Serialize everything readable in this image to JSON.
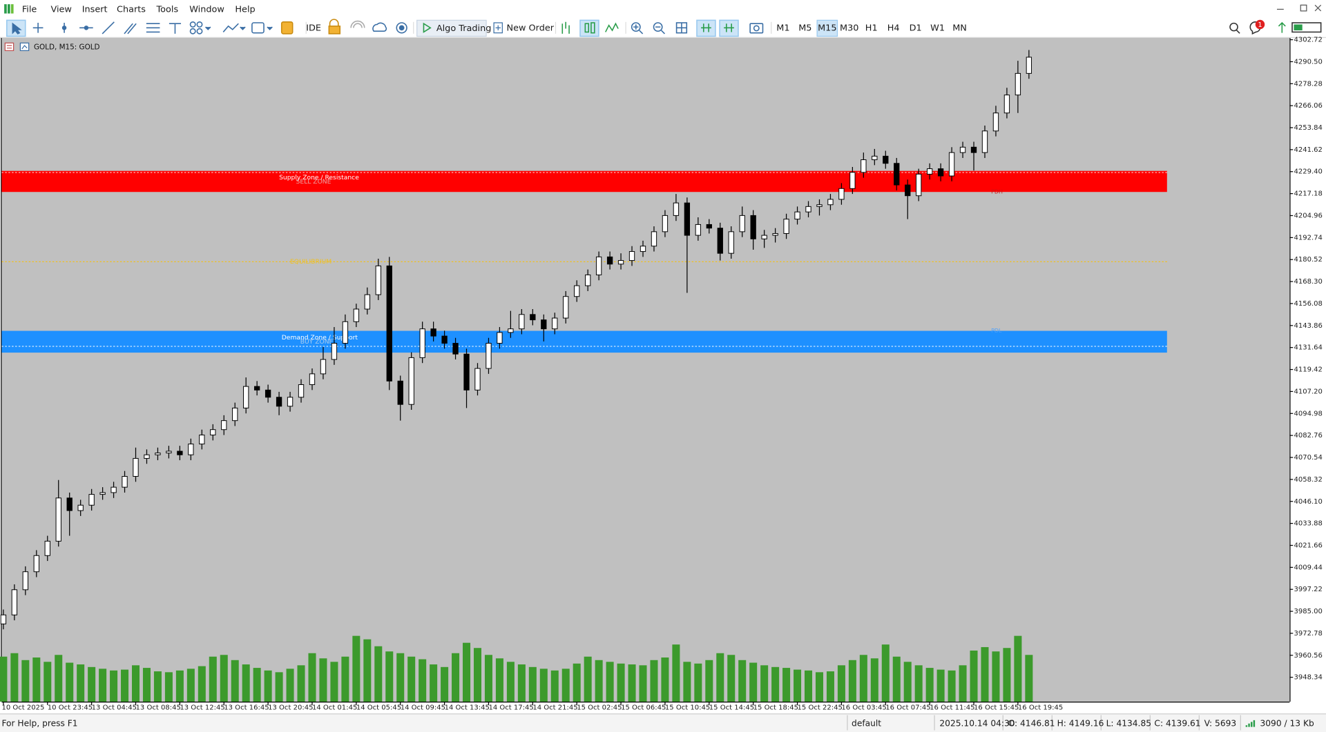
{
  "menu": [
    "File",
    "View",
    "Insert",
    "Charts",
    "Tools",
    "Window",
    "Help"
  ],
  "toolbar": {
    "ide": "IDE",
    "algo_trading": "Algo Trading",
    "new_order": "New Order",
    "timeframes": [
      "M1",
      "M5",
      "M15",
      "M30",
      "H1",
      "H4",
      "D1",
      "W1",
      "MN"
    ],
    "active_timeframe": "M15",
    "notifications": "1"
  },
  "chart_label": "GOLD, M15: GOLD",
  "chart_data": {
    "type": "candlestick",
    "x": [
      "10 Oct 2025",
      null,
      null,
      null,
      "10 Oct 23:45",
      null,
      null,
      null,
      "13 Oct 04:45",
      null,
      null,
      null,
      "13 Oct 08:45",
      null,
      null,
      null,
      "13 Oct 12:45",
      null,
      null,
      null,
      "13 Oct 16:45",
      null,
      null,
      null,
      "13 Oct 20:45",
      null,
      null,
      null,
      "14 Oct 01:45",
      null,
      null,
      null,
      "14 Oct 05:45",
      null,
      null,
      null,
      "14 Oct 09:45",
      null,
      null,
      null,
      "14 Oct 13:45",
      null,
      null,
      null,
      "14 Oct 17:45",
      null,
      null,
      null,
      "14 Oct 21:45",
      null,
      null,
      null,
      "15 Oct 02:45",
      null,
      null,
      null,
      "15 Oct 06:45",
      null,
      null,
      null,
      "15 Oct 10:45",
      null,
      null,
      null,
      "15 Oct 14:45",
      null,
      null,
      null,
      "15 Oct 18:45",
      null,
      null,
      null,
      "15 Oct 22:45",
      null,
      null,
      null,
      "16 Oct 03:45",
      null,
      null,
      null,
      "16 Oct 07:45",
      null,
      null,
      null,
      "16 Oct 11:45",
      null,
      null,
      null,
      "16 Oct 15:45",
      null,
      null,
      null,
      "16 Oct 19:45",
      null
    ],
    "ohlc": [
      [
        3978,
        3986,
        3975,
        3983
      ],
      [
        3983,
        4000,
        3980,
        3997
      ],
      [
        3997,
        4010,
        3994,
        4007
      ],
      [
        4007,
        4019,
        4004,
        4016
      ],
      [
        4016,
        4027,
        4013,
        4024
      ],
      [
        4024,
        4058,
        4021,
        4048
      ],
      [
        4048,
        4051,
        4027,
        4041
      ],
      [
        4041,
        4047,
        4038,
        4044
      ],
      [
        4044,
        4053,
        4041,
        4050
      ],
      [
        4050,
        4054,
        4047,
        4051
      ],
      [
        4051,
        4057,
        4048,
        4054
      ],
      [
        4054,
        4063,
        4051,
        4060
      ],
      [
        4060,
        4076,
        4057,
        4070
      ],
      [
        4070,
        4075,
        4067,
        4072
      ],
      [
        4072,
        4076,
        4069,
        4073
      ],
      [
        4073,
        4077,
        4070,
        4074
      ],
      [
        4074,
        4077,
        4069,
        4072
      ],
      [
        4072,
        4081,
        4069,
        4078
      ],
      [
        4078,
        4086,
        4075,
        4083
      ],
      [
        4083,
        4089,
        4080,
        4086
      ],
      [
        4086,
        4094,
        4083,
        4091
      ],
      [
        4091,
        4101,
        4088,
        4098
      ],
      [
        4098,
        4115,
        4095,
        4110
      ],
      [
        4110,
        4113,
        4105,
        4108
      ],
      [
        4108,
        4111,
        4101,
        4104
      ],
      [
        4104,
        4107,
        4094,
        4099
      ],
      [
        4099,
        4107,
        4096,
        4104
      ],
      [
        4104,
        4114,
        4101,
        4111
      ],
      [
        4111,
        4120,
        4108,
        4117
      ],
      [
        4117,
        4132,
        4114,
        4125
      ],
      [
        4125,
        4143,
        4122,
        4134
      ],
      [
        4134,
        4150,
        4131,
        4146
      ],
      [
        4146,
        4156,
        4143,
        4153
      ],
      [
        4153,
        4165,
        4150,
        4161
      ],
      [
        4161,
        4181,
        4158,
        4177
      ],
      [
        4177,
        4182,
        4108,
        4113
      ],
      [
        4113,
        4116,
        4091,
        4100
      ],
      [
        4100,
        4129,
        4097,
        4126
      ],
      [
        4126,
        4146,
        4123,
        4142
      ],
      [
        4142,
        4146,
        4135,
        4138
      ],
      [
        4138,
        4141,
        4131,
        4134
      ],
      [
        4134,
        4137,
        4125,
        4128
      ],
      [
        4128,
        4131,
        4098,
        4108
      ],
      [
        4108,
        4123,
        4105,
        4120
      ],
      [
        4120,
        4137,
        4117,
        4134
      ],
      [
        4134,
        4143,
        4131,
        4140
      ],
      [
        4140,
        4152,
        4137,
        4142
      ],
      [
        4142,
        4153,
        4139,
        4150
      ],
      [
        4150,
        4153,
        4144,
        4147
      ],
      [
        4147,
        4150,
        4135,
        4142
      ],
      [
        4142,
        4151,
        4139,
        4148
      ],
      [
        4148,
        4163,
        4145,
        4160
      ],
      [
        4160,
        4169,
        4157,
        4166
      ],
      [
        4166,
        4175,
        4163,
        4172
      ],
      [
        4172,
        4185,
        4169,
        4182
      ],
      [
        4182,
        4185,
        4175,
        4178
      ],
      [
        4178,
        4184,
        4175,
        4180
      ],
      [
        4180,
        4188,
        4177,
        4185
      ],
      [
        4185,
        4191,
        4182,
        4188
      ],
      [
        4188,
        4199,
        4185,
        4196
      ],
      [
        4196,
        4208,
        4193,
        4205
      ],
      [
        4205,
        4217,
        4202,
        4212
      ],
      [
        4212,
        4215,
        4162,
        4194
      ],
      [
        4194,
        4204,
        4191,
        4200
      ],
      [
        4200,
        4203,
        4195,
        4198
      ],
      [
        4198,
        4201,
        4180,
        4184
      ],
      [
        4184,
        4199,
        4181,
        4196
      ],
      [
        4196,
        4210,
        4193,
        4205
      ],
      [
        4205,
        4208,
        4186,
        4192
      ],
      [
        4192,
        4197,
        4187,
        4194
      ],
      [
        4194,
        4198,
        4190,
        4195
      ],
      [
        4195,
        4206,
        4192,
        4203
      ],
      [
        4203,
        4210,
        4200,
        4207
      ],
      [
        4207,
        4213,
        4204,
        4210
      ],
      [
        4210,
        4214,
        4205,
        4211
      ],
      [
        4211,
        4217,
        4208,
        4214
      ],
      [
        4214,
        4223,
        4211,
        4220
      ],
      [
        4220,
        4232,
        4217,
        4229
      ],
      [
        4229,
        4240,
        4226,
        4236
      ],
      [
        4236,
        4242,
        4233,
        4238
      ],
      [
        4238,
        4241,
        4231,
        4234
      ],
      [
        4234,
        4237,
        4219,
        4222
      ],
      [
        4222,
        4225,
        4203,
        4216
      ],
      [
        4216,
        4231,
        4213,
        4228
      ],
      [
        4228,
        4234,
        4225,
        4231
      ],
      [
        4231,
        4234,
        4224,
        4227
      ],
      [
        4227,
        4243,
        4224,
        4240
      ],
      [
        4240,
        4246,
        4237,
        4243
      ],
      [
        4243,
        4246,
        4230,
        4240
      ],
      [
        4240,
        4255,
        4237,
        4252
      ],
      [
        4252,
        4266,
        4249,
        4262
      ],
      [
        4262,
        4276,
        4259,
        4272
      ],
      [
        4272,
        4291,
        4262,
        4284
      ],
      [
        4284,
        4297,
        4281,
        4293
      ]
    ],
    "volume": [
      5200,
      5600,
      4800,
      5100,
      4600,
      5400,
      4500,
      4300,
      4000,
      3800,
      3600,
      3700,
      4200,
      3900,
      3500,
      3400,
      3600,
      3800,
      4100,
      5200,
      5400,
      4800,
      4300,
      3900,
      3600,
      3400,
      3800,
      4200,
      5600,
      5000,
      4600,
      5200,
      7600,
      7200,
      6400,
      5800,
      5600,
      5200,
      4900,
      4300,
      4000,
      5600,
      6800,
      6200,
      5400,
      5000,
      4600,
      4300,
      4000,
      3800,
      3600,
      3800,
      4400,
      5200,
      4800,
      4600,
      4400,
      4300,
      4200,
      4800,
      5100,
      6600,
      4600,
      4400,
      4800,
      5600,
      5400,
      4800,
      4500,
      4200,
      4000,
      3900,
      3700,
      3600,
      3400,
      3500,
      4200,
      4800,
      5400,
      5000,
      6600,
      5200,
      4600,
      4200,
      3900,
      3700,
      3600,
      4200,
      5900,
      6300,
      5800,
      6200,
      7600,
      5400
    ],
    "candle_color": "#000000",
    "volume_color": "#3c9a2c",
    "background": "#c0c0c0",
    "ylim": [
      3934.8,
      4303.7
    ],
    "yticks": [
      4302.72,
      {
        "value": 4290.5,
        "label": "4290.50"
      },
      4278.28,
      4266.06,
      4253.84,
      4241.62,
      {
        "value": 4229.4,
        "label": "4229.40"
      },
      4217.18,
      4204.96,
      4192.74,
      4180.52,
      {
        "value": 4168.3,
        "label": "4168.30"
      },
      4156.08,
      4143.86,
      4131.64,
      4119.42,
      {
        "value": 4107.2,
        "label": "4107.20"
      },
      4094.98,
      4082.76,
      4070.54,
      4058.32,
      {
        "value": 4046.1,
        "label": "4046.10"
      },
      4033.88,
      4021.66,
      4009.44,
      3997.22,
      {
        "value": 3985,
        "label": "3985.00"
      },
      3972.78,
      3960.56,
      3948.34
    ],
    "zones": [
      {
        "label": "Supply Zone / Resistance",
        "sublabel": "SELL ZONE",
        "tag": "PDH",
        "range": [
          4218.1,
          4229.8
        ],
        "line": 4228.9,
        "color": "#ff0000",
        "tag_color": "#d01010"
      },
      {
        "label": "Demand Zone / Support",
        "sublabel": "BUY ZONE",
        "tag": "PDL",
        "range": [
          4128.8,
          4140.9
        ],
        "line": 4132.3,
        "color": "#1e90ff",
        "tag_color": "#4aa0ff"
      }
    ],
    "levels": [
      {
        "label": "EQUILIBRIUM",
        "value": 4179.3,
        "color": "#f0c020"
      }
    ]
  },
  "status": {
    "help": "For Help, press F1",
    "profile": "default",
    "time": "2025.10.14 04:30",
    "open": "O: 4146.81",
    "high": "H: 4149.16",
    "low": "L: 4134.85",
    "close": "C: 4139.61",
    "volume": "V: 5693",
    "traffic": "3090 / 13 Kb"
  }
}
